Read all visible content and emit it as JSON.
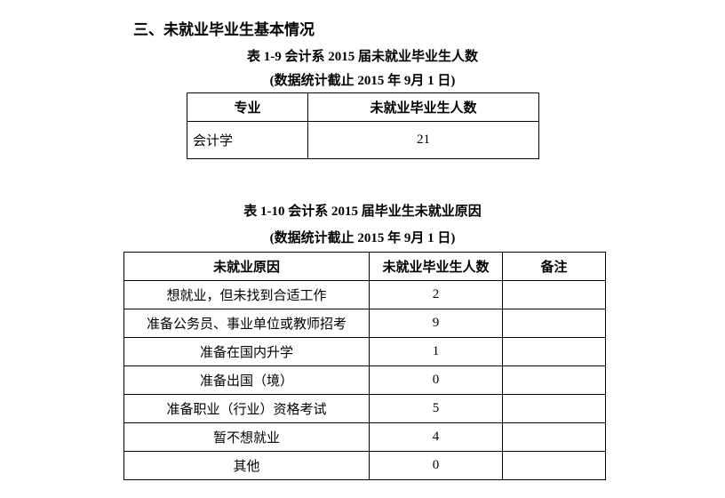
{
  "section_heading": "三、未就业毕业生基本情况",
  "table1": {
    "title": "表 1-9 会计系 2015 届未就业毕业生人数",
    "subtitle": "(数据统计截止 2015 年 9月 1 日)",
    "headers": [
      "专业",
      "未就业毕业生人数"
    ],
    "rows": [
      [
        "会计学",
        "21"
      ]
    ]
  },
  "table2": {
    "title": "表 1-10 会计系 2015 届毕业生未就业原因",
    "subtitle": "(数据统计截止 2015 年 9月 1 日)",
    "headers": [
      "未就业原因",
      "未就业毕业生人数",
      "备注"
    ],
    "rows": [
      [
        "想就业，但未找到合适工作",
        "2",
        ""
      ],
      [
        "准备公务员、事业单位或教师招考",
        "9",
        ""
      ],
      [
        "准备在国内升学",
        "1",
        ""
      ],
      [
        "准备出国（境）",
        "0",
        ""
      ],
      [
        "准备职业（行业）资格考试",
        "5",
        ""
      ],
      [
        "暂不想就业",
        "4",
        ""
      ],
      [
        "其他",
        "0",
        ""
      ]
    ]
  }
}
